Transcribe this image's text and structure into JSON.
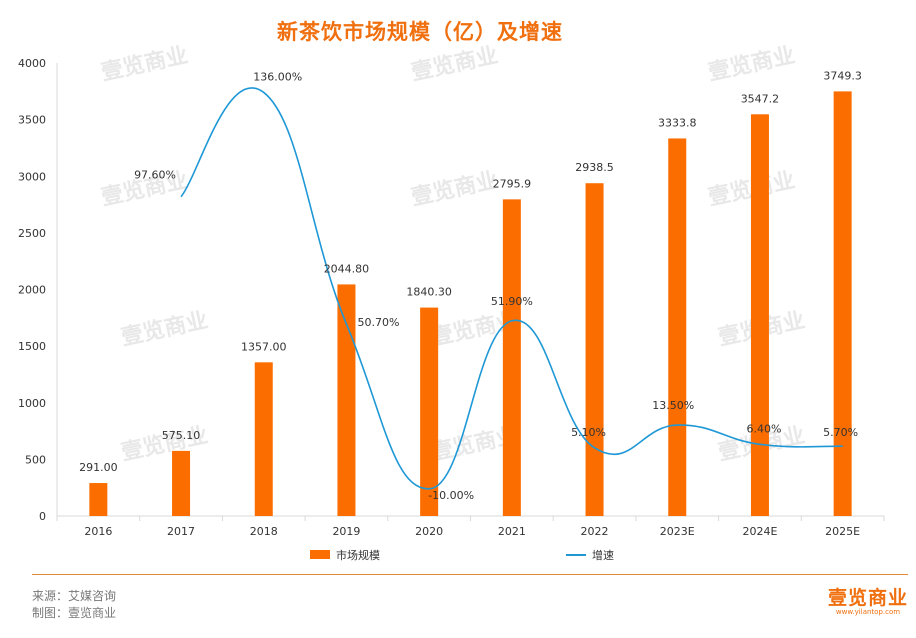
{
  "page": {
    "title": "新茶饮市场规模（亿）及增速",
    "watermark": "壹览商业",
    "source_label": "来源：艾媒咨询",
    "maker_label": "制图：壹览商业",
    "brand_logo": "壹览商业",
    "brand_url": "www.yilantop.com"
  },
  "colors": {
    "bar": "#fc6d00",
    "line": "#1f98d6",
    "title": "#f07010",
    "axis": "#d9d9d9"
  },
  "chart_data": {
    "type": "bar",
    "categories": [
      "2016",
      "2017",
      "2018",
      "2019",
      "2020",
      "2021",
      "2022",
      "2023E",
      "2024E",
      "2025E"
    ],
    "series": [
      {
        "name": "市场规模",
        "type": "bar",
        "values": [
          291.0,
          575.1,
          1357.0,
          2044.8,
          1840.3,
          2795.9,
          2938.5,
          3333.8,
          3547.2,
          3749.3
        ],
        "labels": [
          "291.00",
          "575.10",
          "1357.00",
          "2044.80",
          "1840.30",
          "2795.9",
          "2938.5",
          "3333.8",
          "3547.2",
          "3749.3"
        ]
      },
      {
        "name": "增速",
        "type": "line",
        "smooth": true,
        "axis": "secondary",
        "values": [
          null,
          97.6,
          136.0,
          50.7,
          -10.0,
          51.9,
          5.1,
          13.5,
          6.4,
          5.7
        ],
        "labels": [
          "",
          "97.60%",
          "136.00%",
          "50.70%",
          "-10.00%",
          "51.90%",
          "5.10%",
          "13.50%",
          "6.40%",
          "5.70%"
        ]
      }
    ],
    "ylim": [
      0,
      4000
    ],
    "yticks": [
      "0",
      "500",
      "1000",
      "1500",
      "2000",
      "2500",
      "3000",
      "3500",
      "4000"
    ],
    "legend_position": "bottom"
  }
}
